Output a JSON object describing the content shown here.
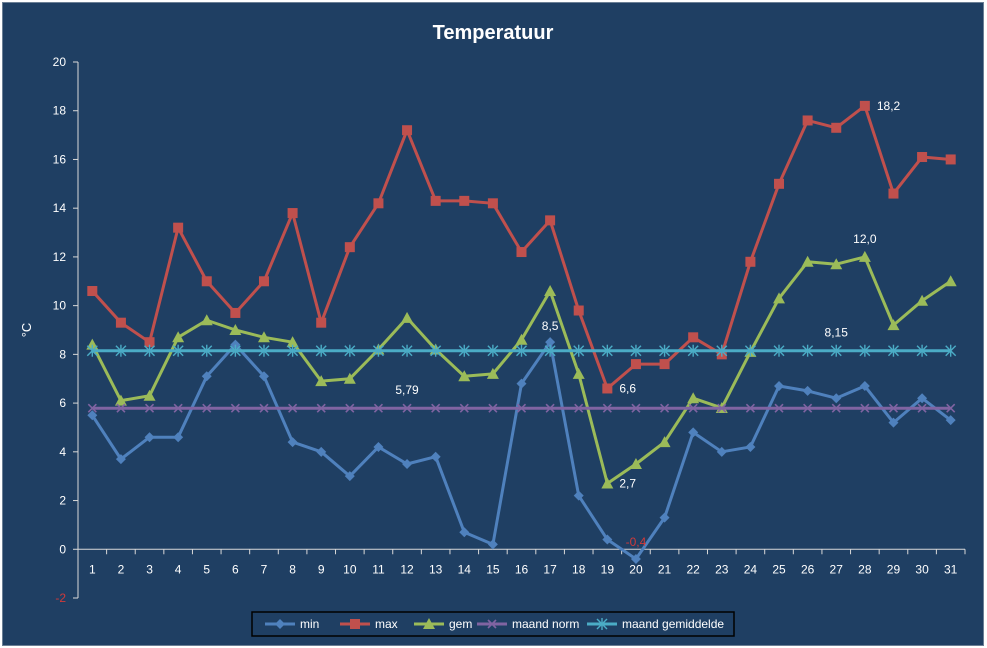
{
  "chart_data": {
    "type": "line",
    "title": "Temperatuur",
    "ylabel": "°C",
    "xlabel": "",
    "ylim": [
      -2,
      20
    ],
    "yticks": [
      -2,
      0,
      2,
      4,
      6,
      8,
      10,
      12,
      14,
      16,
      18,
      20
    ],
    "negative_tick_color": "#d03a3a",
    "grid": false,
    "legend_position": "bottom",
    "x": [
      1,
      2,
      3,
      4,
      5,
      6,
      7,
      8,
      9,
      10,
      11,
      12,
      13,
      14,
      15,
      16,
      17,
      18,
      19,
      20,
      21,
      22,
      23,
      24,
      25,
      26,
      27,
      28,
      29,
      30,
      31
    ],
    "series": [
      {
        "name": "min",
        "color": "#4f81bd",
        "marker": "diamond",
        "values": [
          5.5,
          3.7,
          4.6,
          4.6,
          7.1,
          8.4,
          7.1,
          4.4,
          4.0,
          3.0,
          4.2,
          3.5,
          3.8,
          0.7,
          0.2,
          6.8,
          8.5,
          2.2,
          0.4,
          -0.4,
          1.3,
          4.8,
          4.0,
          4.2,
          6.7,
          6.5,
          6.2,
          6.7,
          5.2,
          6.2,
          5.3
        ]
      },
      {
        "name": "max",
        "color": "#c0504d",
        "marker": "square",
        "values": [
          10.6,
          9.3,
          8.5,
          13.2,
          11.0,
          9.7,
          11.0,
          13.8,
          9.3,
          12.4,
          14.2,
          17.2,
          14.3,
          14.3,
          14.2,
          12.2,
          13.5,
          9.8,
          6.6,
          7.6,
          7.6,
          8.7,
          8.0,
          11.8,
          15.0,
          17.6,
          17.3,
          18.2,
          14.6,
          16.1,
          16.0
        ]
      },
      {
        "name": "gem",
        "color": "#9bbb59",
        "marker": "triangle",
        "values": [
          8.4,
          6.1,
          6.3,
          8.7,
          9.4,
          9.0,
          8.7,
          8.5,
          6.9,
          7.0,
          8.2,
          9.5,
          8.2,
          7.1,
          7.2,
          8.6,
          10.6,
          7.2,
          2.7,
          3.5,
          4.4,
          6.2,
          5.8,
          8.1,
          10.3,
          11.8,
          11.7,
          12.0,
          9.2,
          10.2,
          11.0
        ]
      },
      {
        "name": "maand norm",
        "color": "#8064a2",
        "marker": "x",
        "values": [
          5.79,
          5.79,
          5.79,
          5.79,
          5.79,
          5.79,
          5.79,
          5.79,
          5.79,
          5.79,
          5.79,
          5.79,
          5.79,
          5.79,
          5.79,
          5.79,
          5.79,
          5.79,
          5.79,
          5.79,
          5.79,
          5.79,
          5.79,
          5.79,
          5.79,
          5.79,
          5.79,
          5.79,
          5.79,
          5.79,
          5.79
        ]
      },
      {
        "name": "maand gemiddelde",
        "color": "#4bacc6",
        "marker": "star",
        "values": [
          8.15,
          8.15,
          8.15,
          8.15,
          8.15,
          8.15,
          8.15,
          8.15,
          8.15,
          8.15,
          8.15,
          8.15,
          8.15,
          8.15,
          8.15,
          8.15,
          8.15,
          8.15,
          8.15,
          8.15,
          8.15,
          8.15,
          8.15,
          8.15,
          8.15,
          8.15,
          8.15,
          8.15,
          8.15,
          8.15,
          8.15
        ]
      }
    ],
    "annotations": [
      {
        "text": "18,2",
        "series": "max",
        "x": 28
      },
      {
        "text": "12,0",
        "series": "gem",
        "x": 28
      },
      {
        "text": "8,15",
        "series": "maand gemiddelde",
        "x": 27
      },
      {
        "text": "8,5",
        "series": "min",
        "x": 17
      },
      {
        "text": "5,79",
        "series": "maand norm",
        "x": 12
      },
      {
        "text": "6,6",
        "series": "max",
        "x": 19
      },
      {
        "text": "2,7",
        "series": "gem",
        "x": 19
      },
      {
        "text": "-0,4",
        "series": "min",
        "x": 20,
        "color": "#d03a3a"
      }
    ]
  }
}
